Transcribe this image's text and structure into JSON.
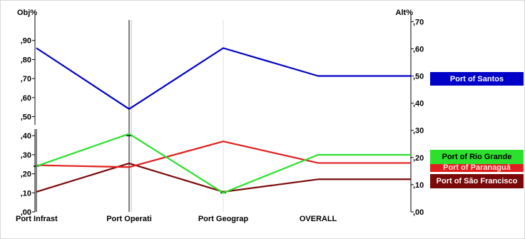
{
  "chart_data": {
    "type": "line",
    "left_axis_title": "Obj%",
    "right_axis_title": "Alt%",
    "left_ticks": [
      ",00",
      ",10",
      ",20",
      ",30",
      ",40",
      ",50",
      ",60",
      ",70",
      ",80",
      ",90"
    ],
    "right_ticks": [
      ",00",
      ",10",
      ",20",
      ",30",
      ",40",
      ",50",
      ",60",
      ",70"
    ],
    "categories": [
      "Port Infrast",
      "Port Operati",
      "Port Geograp",
      "OVERALL"
    ],
    "overall_alt_scale": [
      0,
      0.7
    ],
    "objective_values": [
      0.24,
      0.4,
      0.1
    ],
    "series": [
      {
        "name": "Port of Santos",
        "color": "#0000c8",
        "values": [
          0.86,
          0.54,
          0.86,
          0.5
        ]
      },
      {
        "name": "Port of Rio Grande",
        "color": "#2de02d",
        "values": [
          0.24,
          0.41,
          0.1,
          0.21
        ]
      },
      {
        "name": "Port of Paranaguá",
        "color": "#e02020",
        "values": [
          0.245,
          0.235,
          0.37,
          0.18
        ]
      },
      {
        "name": "Port of São Francisco",
        "color": "#7a0a0a",
        "values": [
          0.105,
          0.255,
          0.105,
          0.12
        ]
      }
    ],
    "grid": false,
    "legend_position": "right"
  },
  "legend": [
    {
      "label": "Port of Santos",
      "color": "#0000c8"
    },
    {
      "label": "Port of Rio Grande",
      "color": "#2de02d"
    },
    {
      "label": "Port of Paranaguá",
      "color": "#e02020"
    },
    {
      "label": "Port of São Francisco",
      "color": "#7a0a0a"
    }
  ]
}
